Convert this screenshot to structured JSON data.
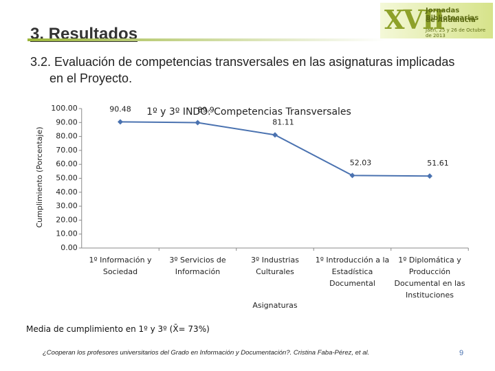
{
  "header": {
    "title": "3. Resultados",
    "subtitle": "3.2. Evaluación de competencias transversales en las asignaturas implicadas en el Proyecto."
  },
  "logo": {
    "roman": "XVII",
    "line1": "Jornadas Bibliotecarias",
    "line2": "de Andalucía",
    "line3": "Jaén, 25 y 26 de Octubre de 2013"
  },
  "chart_data": {
    "type": "line",
    "title": "1º y 3º INDO: Competencias Transversales",
    "y_label": "Cumplimiento (Porcentaje)",
    "x_label": "Asignaturas",
    "categories": [
      "1º Información y Sociedad",
      "3º Servicios de Información",
      "3º Industrias Culturales",
      "1º Introducción a la Estadística Documental",
      "1º Diplomática y Producción Documental en las Instituciones"
    ],
    "values": [
      90.48,
      89.9,
      81.11,
      52.03,
      51.61
    ],
    "color": "#4a72b0",
    "ylim": [
      0,
      100
    ],
    "yticks": [
      {
        "value": 0,
        "label": "0.00"
      },
      {
        "value": 10,
        "label": "10.00"
      },
      {
        "value": 20,
        "label": "20.00"
      },
      {
        "value": 30,
        "label": "30.00"
      },
      {
        "value": 40,
        "label": "40.00"
      },
      {
        "value": 50,
        "label": "50.00"
      },
      {
        "value": 60,
        "label": "60.00"
      },
      {
        "value": 70,
        "label": "70.00"
      },
      {
        "value": 80,
        "label": "80.00"
      },
      {
        "value": 90,
        "label": "90.00"
      },
      {
        "value": 100,
        "label": "100.00"
      }
    ],
    "grid": false
  },
  "note": "Media de cumplimiento en 1º y 3º (X̄= 73%)",
  "footer": {
    "citation": "¿Cooperan los profesores universitarios del Grado en Información y Documentación?. Cristina Faba-Pérez, et al.",
    "page": "9"
  }
}
